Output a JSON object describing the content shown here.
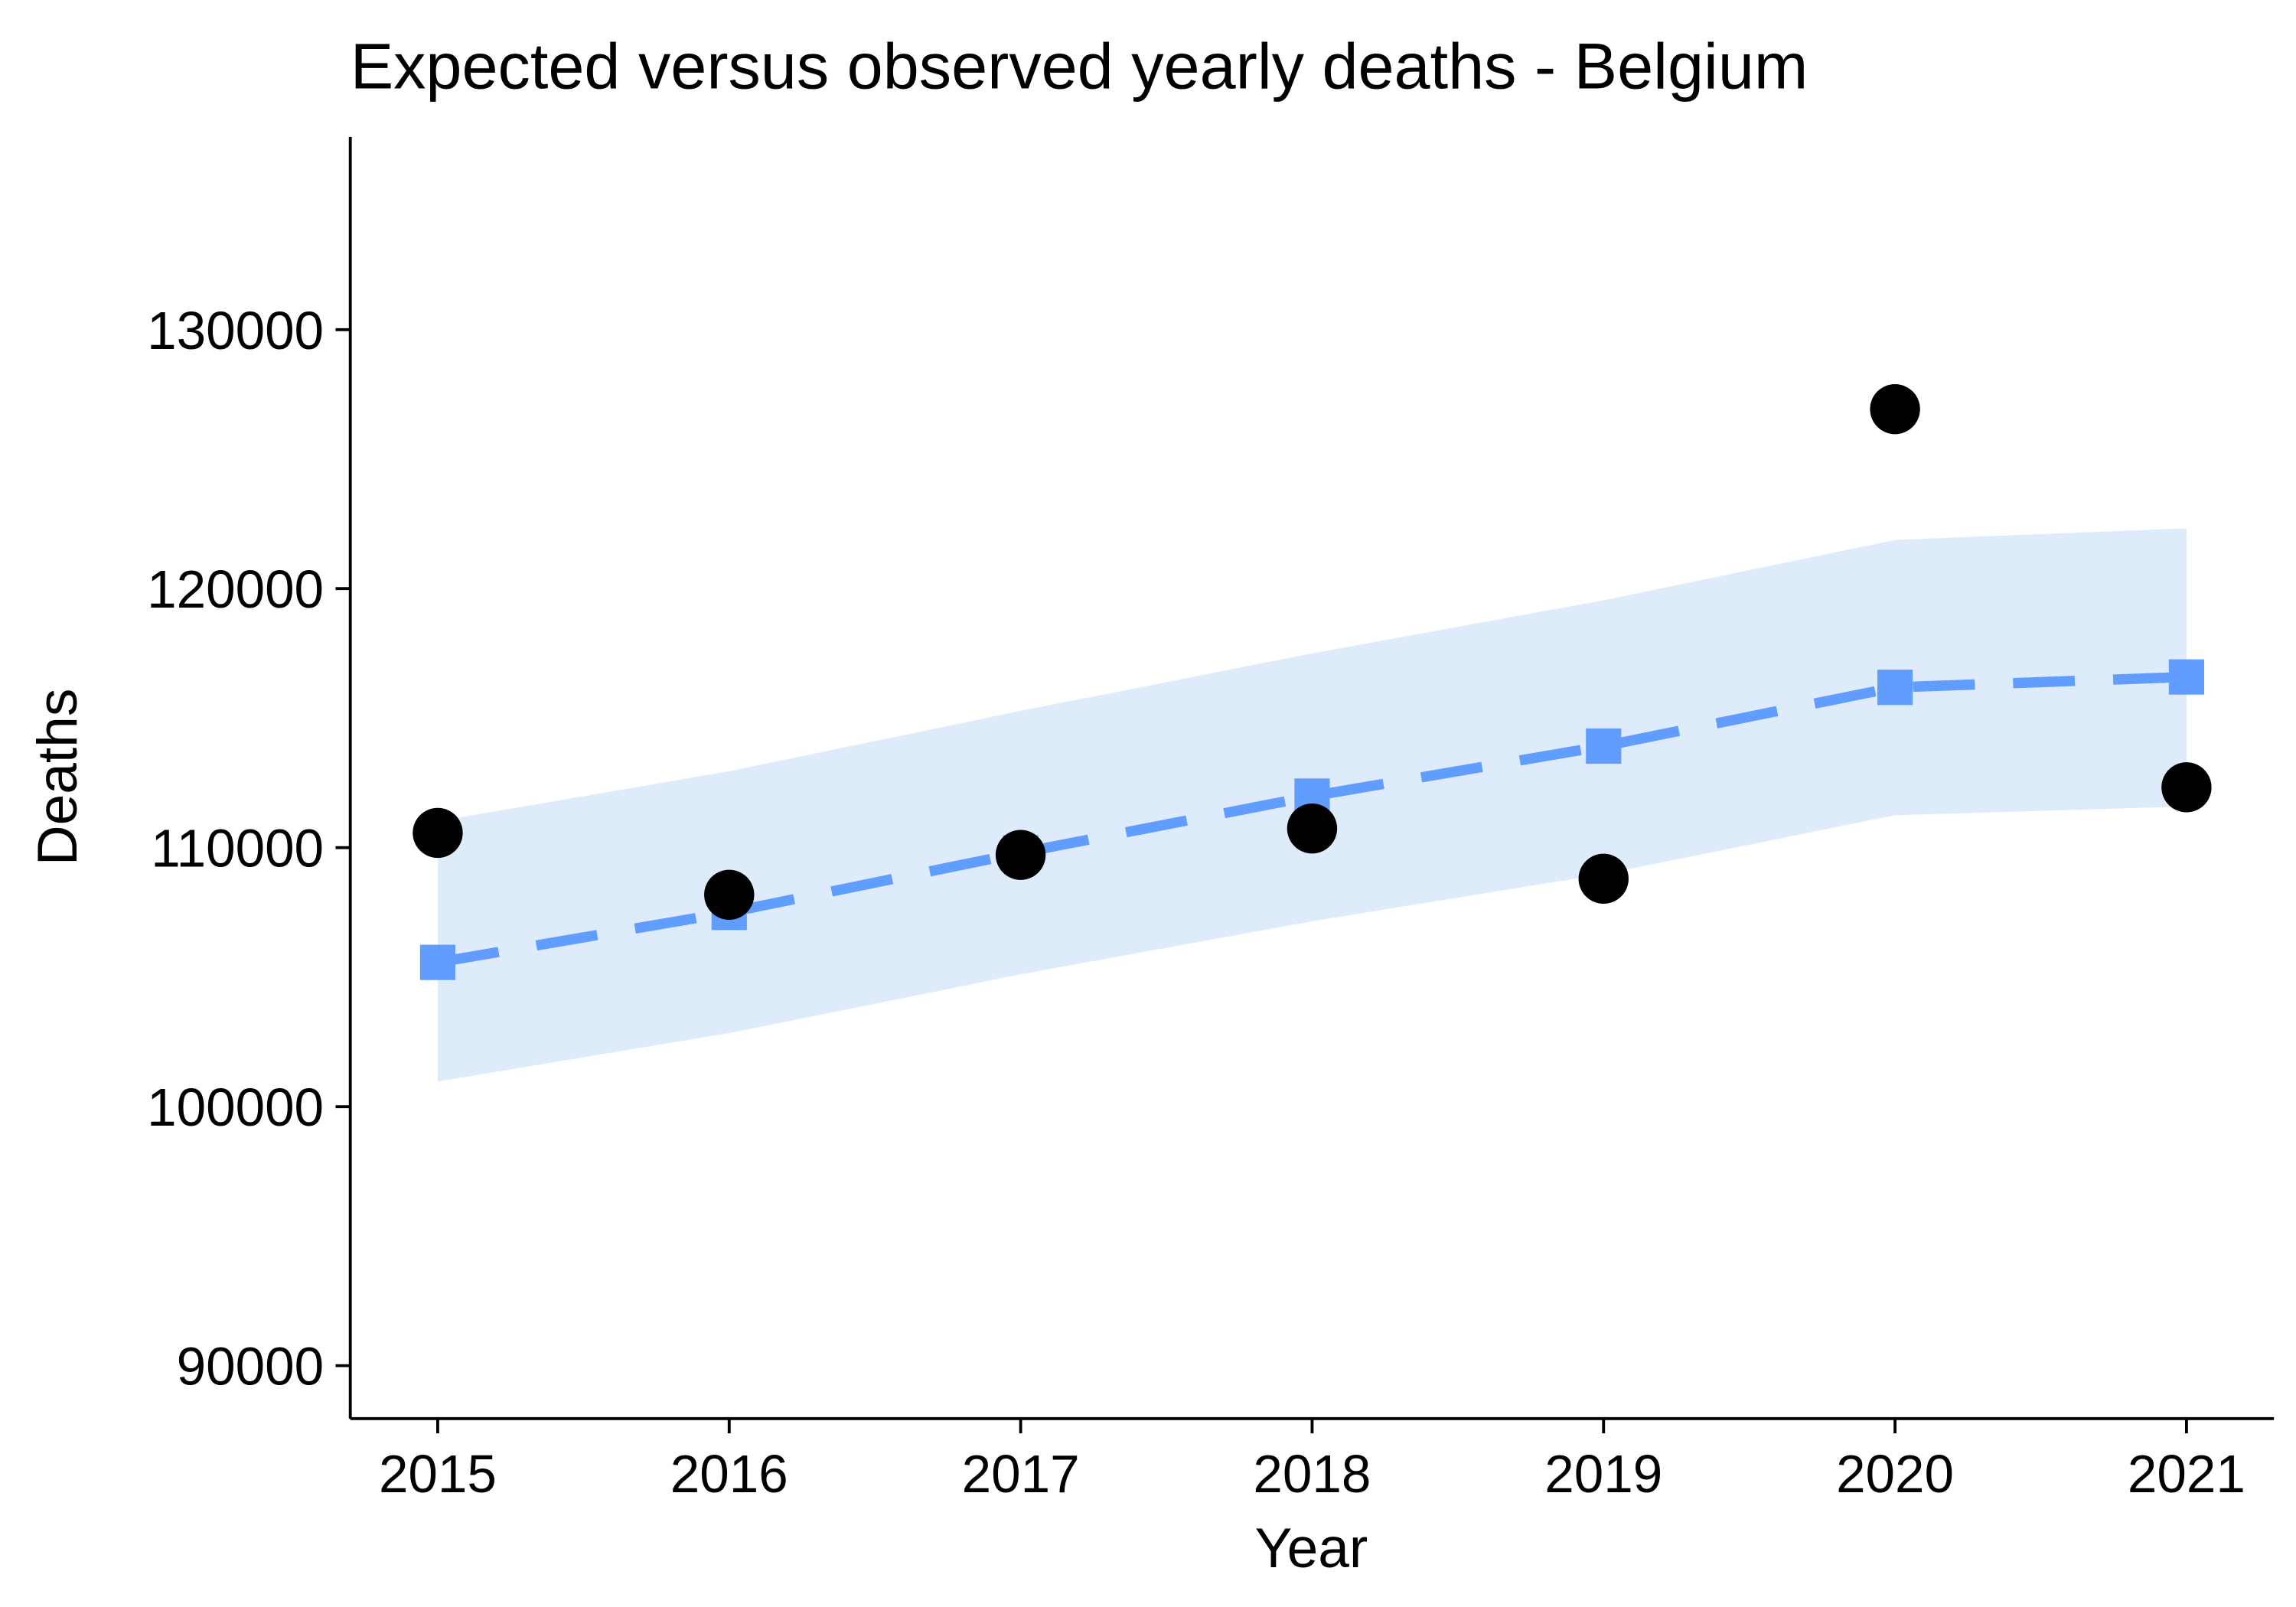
{
  "chart_data": {
    "type": "line",
    "title": "Expected versus observed yearly deaths - Belgium",
    "x_label": "Year",
    "y_label": "Deaths",
    "x": [
      2015,
      2016,
      2017,
      2018,
      2019,
      2020,
      2021
    ],
    "observed": {
      "color": "#000000",
      "values": [
        110570,
        108180,
        109720,
        110740,
        108800,
        126930,
        112330
      ]
    },
    "expected": {
      "color": "#619cff",
      "values": [
        105570,
        107500,
        109800,
        111990,
        113920,
        116190,
        116590
      ]
    },
    "band": {
      "color": "#deebfb",
      "upper": [
        111020,
        112950,
        115280,
        117500,
        119550,
        121880,
        122330
      ],
      "lower": [
        100970,
        102840,
        105110,
        107160,
        108980,
        111250,
        111590
      ]
    },
    "xlim": [
      2014.7,
      2021.3
    ],
    "ylim": [
      87955,
      137443
    ],
    "xticks": [
      2015,
      2016,
      2017,
      2018,
      2019,
      2020,
      2021
    ],
    "yticks": [
      90000,
      100000,
      110000,
      120000,
      130000
    ]
  }
}
